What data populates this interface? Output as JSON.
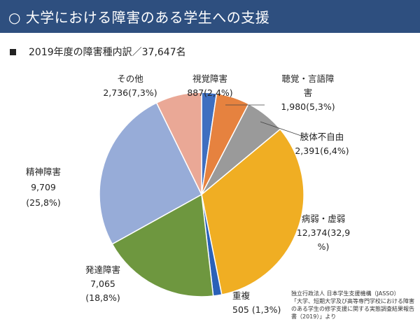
{
  "header": {
    "title": "○ 大学における障害のある学生への支援"
  },
  "subtitle": {
    "marker": "■",
    "text": "2019年度の障害種内訳／37,647名"
  },
  "chart_data": {
    "type": "pie",
    "title": "",
    "total": 37647,
    "start_angle_deg": 0,
    "direction": "clockwise",
    "slices": [
      {
        "name": "視覚障害",
        "value": 887,
        "percent": 2.4,
        "color": "#3f6fc0",
        "label_lines": [
          "視覚障害",
          "887(2,4%)"
        ]
      },
      {
        "name": "聴覚・言語障害",
        "value": 1980,
        "percent": 5.3,
        "color": "#e6823f",
        "label_lines": [
          "聴覚・言語障",
          "害",
          "1,980(5,3%)"
        ]
      },
      {
        "name": "肢体不自由",
        "value": 2391,
        "percent": 6.4,
        "color": "#9a9a9a",
        "label_lines": [
          "肢体不自由",
          "2,391(6,4%)"
        ]
      },
      {
        "name": "病弱・虚弱",
        "value": 12374,
        "percent": 32.9,
        "color": "#f0ae23",
        "label_lines": [
          "病弱・虚弱",
          "12,374(32,9",
          "%)"
        ]
      },
      {
        "name": "重複",
        "value": 505,
        "percent": 1.3,
        "color": "#2a61b8",
        "label_lines": [
          "重複",
          "505 (1,3%)"
        ]
      },
      {
        "name": "発達障害",
        "value": 7065,
        "percent": 18.8,
        "color": "#6e973f",
        "label_lines": [
          "発達障害",
          "7,065",
          "(18,8%)"
        ]
      },
      {
        "name": "精神障害",
        "value": 9709,
        "percent": 25.8,
        "color": "#97acd8",
        "label_lines": [
          "精神障害",
          "9,709",
          "(25,8%)"
        ]
      },
      {
        "name": "その他",
        "value": 2736,
        "percent": 7.3,
        "color": "#eaa896",
        "label_lines": [
          "その他",
          "2,736(7,3%)"
        ]
      }
    ]
  },
  "source": {
    "lines": [
      "独立行政法人 日本学生支援機構（JASSO）",
      "「大学、短期大学及び高等専門学校における障害",
      "のある学生の修学支援に関する実態調査結果報告",
      "書（2019）」より"
    ]
  }
}
